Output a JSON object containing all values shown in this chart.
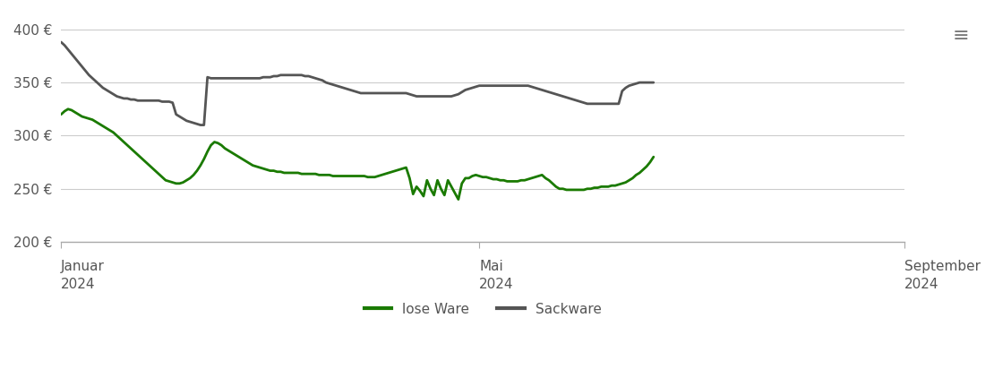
{
  "title": "",
  "ylabel": "",
  "xlabel": "",
  "ylim": [
    200,
    415
  ],
  "yticks": [
    200,
    250,
    300,
    350,
    400
  ],
  "ytick_labels": [
    "200 €",
    "250 €",
    "300 €",
    "350 €",
    "400 €"
  ],
  "xtick_positions": [
    0,
    121,
    243
  ],
  "xtick_labels_top": [
    "Januar",
    "Mai",
    "September"
  ],
  "xtick_labels_bottom": [
    "2024",
    "2024",
    "2024"
  ],
  "legend_labels": [
    "lose Ware",
    "Sackware"
  ],
  "line_lose_color": "#1a7a00",
  "line_sack_color": "#555555",
  "line_width": 2.0,
  "background_color": "#ffffff",
  "grid_color": "#cccccc",
  "lose_ware": [
    320,
    323,
    325,
    324,
    322,
    320,
    318,
    317,
    316,
    315,
    313,
    311,
    309,
    307,
    305,
    303,
    300,
    297,
    294,
    291,
    288,
    285,
    282,
    279,
    276,
    273,
    270,
    267,
    264,
    261,
    258,
    257,
    256,
    255,
    255,
    256,
    258,
    260,
    263,
    267,
    272,
    278,
    285,
    291,
    294,
    293,
    291,
    288,
    286,
    284,
    282,
    280,
    278,
    276,
    274,
    272,
    271,
    270,
    269,
    268,
    267,
    267,
    266,
    266,
    265,
    265,
    265,
    265,
    265,
    264,
    264,
    264,
    264,
    264,
    263,
    263,
    263,
    263,
    262,
    262,
    262,
    262,
    262,
    262,
    262,
    262,
    262,
    262,
    261,
    261,
    261,
    262,
    263,
    264,
    265,
    266,
    267,
    268,
    269,
    270,
    260,
    245,
    252,
    248,
    243,
    258,
    250,
    244,
    258,
    250,
    244,
    258,
    252,
    246,
    240,
    255,
    260,
    260,
    262,
    263,
    262,
    261,
    261,
    260,
    259,
    259,
    258,
    258,
    257,
    257,
    257,
    257,
    258,
    258,
    259,
    260,
    261,
    262,
    263,
    260,
    258,
    255,
    252,
    250,
    250,
    249,
    249,
    249,
    249,
    249,
    249,
    250,
    250,
    251,
    251,
    252,
    252,
    252,
    253,
    253,
    254,
    255,
    256,
    258,
    260,
    263,
    265,
    268,
    271,
    275,
    280
  ],
  "sack_ware": [
    388,
    385,
    381,
    377,
    373,
    369,
    365,
    361,
    357,
    354,
    351,
    348,
    345,
    343,
    341,
    339,
    337,
    336,
    335,
    335,
    334,
    334,
    333,
    333,
    333,
    333,
    333,
    333,
    333,
    332,
    332,
    332,
    331,
    320,
    318,
    316,
    314,
    313,
    312,
    311,
    310,
    310,
    355,
    354,
    354,
    354,
    354,
    354,
    354,
    354,
    354,
    354,
    354,
    354,
    354,
    354,
    354,
    354,
    355,
    355,
    355,
    356,
    356,
    357,
    357,
    357,
    357,
    357,
    357,
    357,
    356,
    356,
    355,
    354,
    353,
    352,
    350,
    349,
    348,
    347,
    346,
    345,
    344,
    343,
    342,
    341,
    340,
    340,
    340,
    340,
    340,
    340,
    340,
    340,
    340,
    340,
    340,
    340,
    340,
    340,
    339,
    338,
    337,
    337,
    337,
    337,
    337,
    337,
    337,
    337,
    337,
    337,
    337,
    338,
    339,
    341,
    343,
    344,
    345,
    346,
    347,
    347,
    347,
    347,
    347,
    347,
    347,
    347,
    347,
    347,
    347,
    347,
    347,
    347,
    347,
    346,
    345,
    344,
    343,
    342,
    341,
    340,
    339,
    338,
    337,
    336,
    335,
    334,
    333,
    332,
    331,
    330,
    330,
    330,
    330,
    330,
    330,
    330,
    330,
    330,
    330,
    342,
    345,
    347,
    348,
    349,
    350,
    350,
    350,
    350,
    350
  ]
}
